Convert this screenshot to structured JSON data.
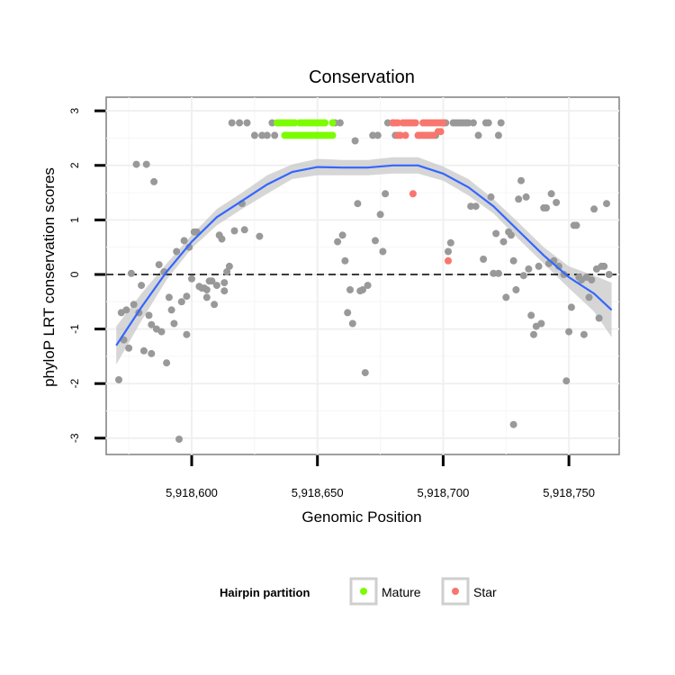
{
  "chart_data": {
    "type": "scatter",
    "title": "Conservation",
    "xlabel": "Genomic Position",
    "ylabel": "phyloP LRT conservation scores",
    "xlim": [
      5918566,
      5918770
    ],
    "ylim": [
      -3.3,
      3.25
    ],
    "x_ticks": [
      5918600,
      5918650,
      5918700,
      5918750
    ],
    "x_tick_labels": [
      "5,918,600",
      "5,918,650",
      "5,918,700",
      "5,918,750"
    ],
    "y_ticks": [
      -3,
      -2,
      -1,
      0,
      1,
      2,
      3
    ],
    "y_tick_labels": [
      "-3",
      "-2",
      "-1",
      "0",
      "1",
      "2",
      "3"
    ],
    "grid": true,
    "reference_line": {
      "y": 0,
      "style": "dashed"
    },
    "legend": {
      "title": "Hairpin partition",
      "position": "bottom",
      "entries": [
        {
          "label": "Mature",
          "color": "#7cfc00"
        },
        {
          "label": "Star",
          "color": "#f8766d"
        }
      ]
    },
    "colors": {
      "other_points": "#999999",
      "mature": "#7cfc00",
      "star": "#f8766d",
      "smooth_line": "#3366ff",
      "confidence_band": "#c8c8c8"
    },
    "series": [
      {
        "name": "Other",
        "color": "#999999",
        "points": [
          [
            5918571,
            -1.93
          ],
          [
            5918572,
            -0.7
          ],
          [
            5918573,
            -1.2
          ],
          [
            5918574,
            -0.65
          ],
          [
            5918575,
            -1.35
          ],
          [
            5918576,
            0.02
          ],
          [
            5918577,
            -0.55
          ],
          [
            5918578,
            2.02
          ],
          [
            5918579,
            -0.7
          ],
          [
            5918580,
            -0.2
          ],
          [
            5918581,
            -1.4
          ],
          [
            5918582,
            2.02
          ],
          [
            5918583,
            -0.75
          ],
          [
            5918584,
            -0.92
          ],
          [
            5918584,
            -1.45
          ],
          [
            5918585,
            1.7
          ],
          [
            5918586,
            -1.0
          ],
          [
            5918587,
            0.18
          ],
          [
            5918588,
            -1.05
          ],
          [
            5918589,
            0.05
          ],
          [
            5918590,
            -1.62
          ],
          [
            5918591,
            -0.42
          ],
          [
            5918592,
            -0.65
          ],
          [
            5918593,
            -0.9
          ],
          [
            5918594,
            0.42
          ],
          [
            5918595,
            -3.02
          ],
          [
            5918596,
            -0.5
          ],
          [
            5918597,
            0.62
          ],
          [
            5918598,
            -1.1
          ],
          [
            5918598,
            -0.4
          ],
          [
            5918599,
            0.5
          ],
          [
            5918600,
            -0.08
          ],
          [
            5918601,
            0.78
          ],
          [
            5918602,
            0.78
          ],
          [
            5918603,
            -0.22
          ],
          [
            5918604,
            -0.25
          ],
          [
            5918605,
            -0.25
          ],
          [
            5918606,
            -0.28
          ],
          [
            5918606,
            -0.42
          ],
          [
            5918607,
            -0.12
          ],
          [
            5918608,
            -0.12
          ],
          [
            5918609,
            -0.55
          ],
          [
            5918610,
            -0.2
          ],
          [
            5918611,
            0.72
          ],
          [
            5918612,
            0.65
          ],
          [
            5918613,
            -0.15
          ],
          [
            5918613,
            -0.3
          ],
          [
            5918614,
            0.05
          ],
          [
            5918615,
            0.15
          ],
          [
            5918616,
            2.78
          ],
          [
            5918617,
            0.8
          ],
          [
            5918619,
            2.78
          ],
          [
            5918620,
            1.3
          ],
          [
            5918621,
            0.82
          ],
          [
            5918622,
            2.78
          ],
          [
            5918625,
            2.55
          ],
          [
            5918627,
            0.7
          ],
          [
            5918628,
            2.55
          ],
          [
            5918630,
            2.55
          ],
          [
            5918632,
            2.78
          ],
          [
            5918633,
            2.55
          ],
          [
            5918657,
            2.78
          ],
          [
            5918658,
            0.6
          ],
          [
            5918659,
            2.78
          ],
          [
            5918660,
            0.72
          ],
          [
            5918661,
            0.25
          ],
          [
            5918662,
            -0.7
          ],
          [
            5918663,
            -0.28
          ],
          [
            5918664,
            -0.9
          ],
          [
            5918665,
            2.45
          ],
          [
            5918666,
            1.3
          ],
          [
            5918667,
            -0.3
          ],
          [
            5918668,
            -0.28
          ],
          [
            5918669,
            -1.8
          ],
          [
            5918670,
            -0.2
          ],
          [
            5918672,
            2.55
          ],
          [
            5918673,
            0.62
          ],
          [
            5918674,
            2.55
          ],
          [
            5918675,
            1.1
          ],
          [
            5918676,
            0.42
          ],
          [
            5918677,
            1.48
          ],
          [
            5918678,
            2.78
          ],
          [
            5918680,
            2.78
          ],
          [
            5918681,
            2.55
          ],
          [
            5918694,
            2.55
          ],
          [
            5918697,
            2.55
          ],
          [
            5918700,
            2.78
          ],
          [
            5918701,
            2.78
          ],
          [
            5918702,
            0.42
          ],
          [
            5918703,
            0.58
          ],
          [
            5918704,
            2.78
          ],
          [
            5918705,
            2.78
          ],
          [
            5918706,
            2.78
          ],
          [
            5918707,
            2.78
          ],
          [
            5918708,
            2.78
          ],
          [
            5918709,
            2.78
          ],
          [
            5918710,
            2.78
          ],
          [
            5918711,
            1.25
          ],
          [
            5918712,
            2.78
          ],
          [
            5918713,
            1.25
          ],
          [
            5918714,
            2.55
          ],
          [
            5918716,
            0.28
          ],
          [
            5918717,
            2.78
          ],
          [
            5918718,
            2.78
          ],
          [
            5918719,
            1.42
          ],
          [
            5918720,
            0.02
          ],
          [
            5918721,
            0.75
          ],
          [
            5918722,
            0.02
          ],
          [
            5918722,
            2.55
          ],
          [
            5918723,
            2.78
          ],
          [
            5918724,
            0.6
          ],
          [
            5918725,
            -0.42
          ],
          [
            5918726,
            0.78
          ],
          [
            5918727,
            0.72
          ],
          [
            5918728,
            -2.75
          ],
          [
            5918728,
            0.25
          ],
          [
            5918729,
            -0.28
          ],
          [
            5918730,
            1.38
          ],
          [
            5918731,
            1.72
          ],
          [
            5918732,
            -0.02
          ],
          [
            5918733,
            1.42
          ],
          [
            5918734,
            0.1
          ],
          [
            5918735,
            -0.75
          ],
          [
            5918736,
            -1.1
          ],
          [
            5918737,
            -0.95
          ],
          [
            5918738,
            0.15
          ],
          [
            5918739,
            -0.9
          ],
          [
            5918740,
            1.22
          ],
          [
            5918741,
            1.22
          ],
          [
            5918742,
            0.2
          ],
          [
            5918743,
            1.48
          ],
          [
            5918744,
            0.25
          ],
          [
            5918745,
            1.32
          ],
          [
            5918746,
            0.15
          ],
          [
            5918748,
            0.0
          ],
          [
            5918749,
            -1.95
          ],
          [
            5918750,
            -1.05
          ],
          [
            5918751,
            -0.6
          ],
          [
            5918752,
            0.9
          ],
          [
            5918753,
            0.9
          ],
          [
            5918754,
            -0.05
          ],
          [
            5918755,
            -0.1
          ],
          [
            5918756,
            -1.1
          ],
          [
            5918757,
            -0.05
          ],
          [
            5918758,
            -0.42
          ],
          [
            5918759,
            -0.1
          ],
          [
            5918760,
            1.2
          ],
          [
            5918761,
            0.1
          ],
          [
            5918762,
            -0.8
          ],
          [
            5918763,
            0.15
          ],
          [
            5918764,
            0.15
          ],
          [
            5918765,
            1.3
          ],
          [
            5918766,
            0.0
          ]
        ]
      },
      {
        "name": "Mature",
        "color": "#7cfc00",
        "points": [
          [
            5918634,
            2.78
          ],
          [
            5918635,
            2.78
          ],
          [
            5918636,
            2.78
          ],
          [
            5918637,
            2.78
          ],
          [
            5918638,
            2.78
          ],
          [
            5918639,
            2.78
          ],
          [
            5918640,
            2.78
          ],
          [
            5918641,
            2.78
          ],
          [
            5918643,
            2.78
          ],
          [
            5918644,
            2.78
          ],
          [
            5918645,
            2.78
          ],
          [
            5918646,
            2.78
          ],
          [
            5918647,
            2.78
          ],
          [
            5918648,
            2.78
          ],
          [
            5918649,
            2.78
          ],
          [
            5918650,
            2.78
          ],
          [
            5918651,
            2.78
          ],
          [
            5918652,
            2.78
          ],
          [
            5918653,
            2.78
          ],
          [
            5918656,
            2.78
          ],
          [
            5918637,
            2.55
          ],
          [
            5918638,
            2.55
          ],
          [
            5918639,
            2.55
          ],
          [
            5918640,
            2.55
          ],
          [
            5918641,
            2.55
          ],
          [
            5918642,
            2.55
          ],
          [
            5918643,
            2.55
          ],
          [
            5918644,
            2.55
          ],
          [
            5918645,
            2.55
          ],
          [
            5918646,
            2.55
          ],
          [
            5918647,
            2.55
          ],
          [
            5918648,
            2.55
          ],
          [
            5918649,
            2.55
          ],
          [
            5918650,
            2.55
          ],
          [
            5918651,
            2.55
          ],
          [
            5918652,
            2.55
          ],
          [
            5918653,
            2.55
          ],
          [
            5918654,
            2.55
          ],
          [
            5918655,
            2.55
          ],
          [
            5918656,
            2.55
          ]
        ]
      },
      {
        "name": "Star",
        "color": "#f8766d",
        "points": [
          [
            5918680,
            2.78
          ],
          [
            5918681,
            2.78
          ],
          [
            5918682,
            2.78
          ],
          [
            5918684,
            2.78
          ],
          [
            5918685,
            2.78
          ],
          [
            5918686,
            2.78
          ],
          [
            5918687,
            2.78
          ],
          [
            5918688,
            2.78
          ],
          [
            5918689,
            2.78
          ],
          [
            5918692,
            2.78
          ],
          [
            5918693,
            2.78
          ],
          [
            5918694,
            2.78
          ],
          [
            5918695,
            2.78
          ],
          [
            5918696,
            2.78
          ],
          [
            5918697,
            2.78
          ],
          [
            5918698,
            2.78
          ],
          [
            5918699,
            2.78
          ],
          [
            5918700,
            2.78
          ],
          [
            5918682,
            2.55
          ],
          [
            5918683,
            2.55
          ],
          [
            5918685,
            2.55
          ],
          [
            5918690,
            2.55
          ],
          [
            5918691,
            2.55
          ],
          [
            5918692,
            2.55
          ],
          [
            5918693,
            2.55
          ],
          [
            5918695,
            2.55
          ],
          [
            5918696,
            2.55
          ],
          [
            5918698,
            2.62
          ],
          [
            5918699,
            2.62
          ],
          [
            5918688,
            1.48
          ],
          [
            5918702,
            0.25
          ]
        ]
      }
    ],
    "smooth": {
      "x": [
        5918570,
        5918580,
        5918590,
        5918600,
        5918610,
        5918620,
        5918630,
        5918640,
        5918650,
        5918660,
        5918670,
        5918680,
        5918690,
        5918700,
        5918710,
        5918720,
        5918730,
        5918740,
        5918750,
        5918760,
        5918767
      ],
      "y": [
        -1.3,
        -0.6,
        0.05,
        0.6,
        1.05,
        1.35,
        1.65,
        1.88,
        1.97,
        1.96,
        1.96,
        2.0,
        2.0,
        1.85,
        1.6,
        1.25,
        0.8,
        0.35,
        -0.05,
        -0.35,
        -0.65
      ],
      "lower": [
        -1.65,
        -0.85,
        -0.1,
        0.48,
        0.9,
        1.2,
        1.48,
        1.75,
        1.82,
        1.82,
        1.82,
        1.85,
        1.85,
        1.72,
        1.45,
        1.12,
        0.65,
        0.2,
        -0.25,
        -0.68,
        -1.15
      ],
      "upper": [
        -0.95,
        -0.35,
        0.2,
        0.72,
        1.2,
        1.5,
        1.82,
        2.02,
        2.12,
        2.1,
        2.1,
        2.15,
        2.15,
        1.98,
        1.75,
        1.38,
        0.95,
        0.5,
        0.15,
        -0.02,
        -0.15
      ]
    }
  }
}
